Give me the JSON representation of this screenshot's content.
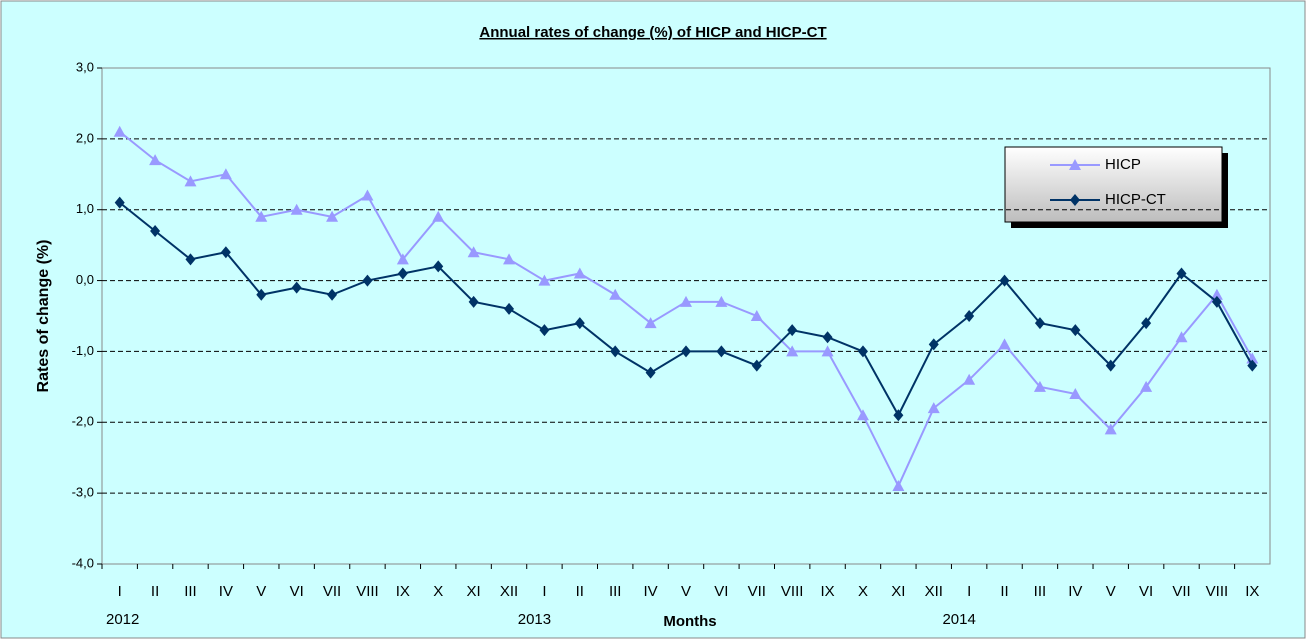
{
  "chart_data": {
    "type": "line",
    "title": "Annual rates of change (%) of HICP and HICP-CT",
    "x_label": "Months",
    "y_label": "Rates of change (%)",
    "categories": [
      "I",
      "II",
      "III",
      "IV",
      "V",
      "VI",
      "VII",
      "VIII",
      "IX",
      "X",
      "XI",
      "XII",
      "I",
      "II",
      "III",
      "IV",
      "V",
      "VI",
      "VII",
      "VIII",
      "IX",
      "X",
      "XI",
      "XII",
      "I",
      "II",
      "III",
      "IV",
      "V",
      "VI",
      "VII",
      "VIII",
      "IX"
    ],
    "years": [
      "2012",
      "2013",
      "2014"
    ],
    "series": [
      {
        "name": "HICP",
        "color": "#9999ff",
        "marker": "triangle",
        "values": [
          2.1,
          1.7,
          1.4,
          1.5,
          0.9,
          1.0,
          0.9,
          1.2,
          0.3,
          0.9,
          0.4,
          0.3,
          0.0,
          0.1,
          -0.2,
          -0.6,
          -0.3,
          -0.3,
          -0.5,
          -1.0,
          -1.0,
          -1.9,
          -2.9,
          -1.8,
          -1.4,
          -0.9,
          -1.5,
          -1.6,
          -2.1,
          -1.5,
          -0.8,
          -0.2,
          -1.1
        ]
      },
      {
        "name": "HICP-CT",
        "color": "#003366",
        "marker": "diamond",
        "values": [
          1.1,
          0.7,
          0.3,
          0.4,
          -0.2,
          -0.1,
          -0.2,
          0.0,
          0.1,
          0.2,
          -0.3,
          -0.4,
          -0.7,
          -0.6,
          -1.0,
          -1.3,
          -1.0,
          -1.0,
          -1.2,
          -0.7,
          -0.8,
          -1.0,
          -1.9,
          -0.9,
          -0.5,
          0.0,
          -0.6,
          -0.7,
          -1.2,
          -0.6,
          0.1,
          -0.3,
          -1.2
        ]
      }
    ],
    "ylim": [
      -4,
      3
    ],
    "yticks": [
      {
        "value": -4,
        "label": "-4,0"
      },
      {
        "value": -3,
        "label": "-3,0"
      },
      {
        "value": -2,
        "label": "-2,0"
      },
      {
        "value": -1,
        "label": "-1,0"
      },
      {
        "value": 0,
        "label": "0,0"
      },
      {
        "value": 1,
        "label": "1,0"
      },
      {
        "value": 2,
        "label": "2,0"
      },
      {
        "value": 3,
        "label": "3,0"
      }
    ],
    "grid": true
  }
}
